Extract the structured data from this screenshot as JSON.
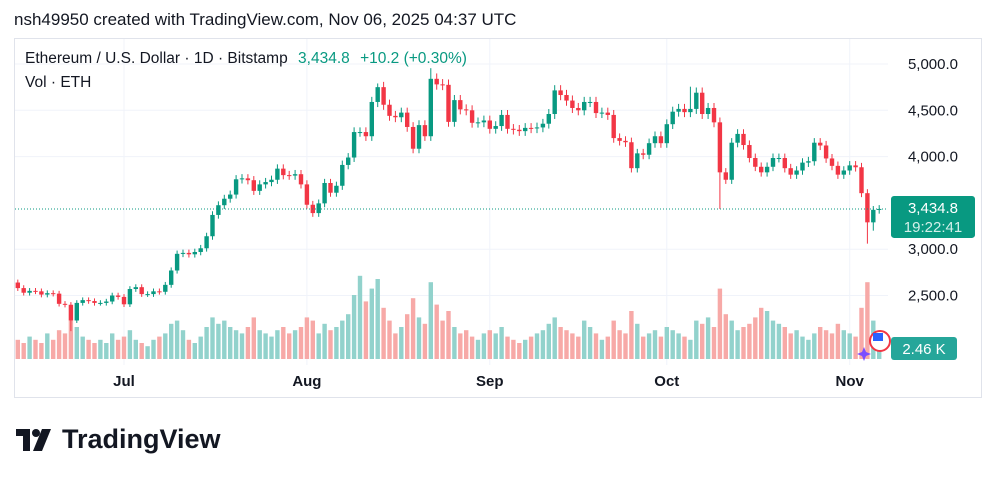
{
  "header": "nsh49950 created with TradingView.com, Nov 06, 2025 04:37 UTC",
  "legend": {
    "symbol": "Ethereum / U.S. Dollar · 1D · Bitstamp",
    "last": "3,434.8",
    "change": "+10.2 (+0.30%)",
    "volume_label": "Vol · ETH"
  },
  "price_tag": {
    "price": "3,434.8",
    "countdown": "19:22:41"
  },
  "volume_tag": "2.46 K",
  "logo_text": "TradingView",
  "colors": {
    "up": "#089981",
    "down": "#f23645",
    "vol_up": "#92d2cc",
    "vol_down": "#f7a9a7",
    "tag": "#089981"
  },
  "chart_data": {
    "type": "candlestick",
    "start_date": "2025-06-13",
    "y_ticks": [
      "5,000.0",
      "4,500.0",
      "4,000.0",
      "3,000.0",
      "2,500.0"
    ],
    "y_tick_values": [
      5000,
      4500,
      4000,
      3000,
      2500
    ],
    "ylim": [
      2100,
      5150
    ],
    "x_ticks": [
      {
        "label": "Jul",
        "date": "2025-07-01"
      },
      {
        "label": "Aug",
        "date": "2025-08-01"
      },
      {
        "label": "Sep",
        "date": "2025-09-01"
      },
      {
        "label": "Oct",
        "date": "2025-10-01"
      },
      {
        "label": "Nov",
        "date": "2025-11-01"
      }
    ],
    "first_open": 2640,
    "close": [
      2580,
      2530,
      2550,
      2545,
      2510,
      2525,
      2520,
      2410,
      2400,
      2230,
      2420,
      2450,
      2440,
      2420,
      2420,
      2435,
      2500,
      2485,
      2405,
      2570,
      2590,
      2515,
      2515,
      2545,
      2540,
      2615,
      2770,
      2950,
      2960,
      2945,
      2970,
      3010,
      3140,
      3370,
      3475,
      3545,
      3590,
      3755,
      3765,
      3745,
      3630,
      3700,
      3725,
      3750,
      3870,
      3800,
      3795,
      3810,
      3700,
      3480,
      3390,
      3495,
      3715,
      3610,
      3685,
      3910,
      3990,
      4265,
      4265,
      4220,
      4590,
      4750,
      4560,
      4440,
      4425,
      4475,
      4320,
      4085,
      4340,
      4220,
      4840,
      4780,
      4775,
      4375,
      4610,
      4510,
      4500,
      4365,
      4370,
      4390,
      4300,
      4330,
      4450,
      4300,
      4290,
      4275,
      4310,
      4305,
      4315,
      4355,
      4460,
      4715,
      4665,
      4605,
      4525,
      4500,
      4590,
      4590,
      4470,
      4475,
      4450,
      4200,
      4170,
      4155,
      3875,
      4035,
      4020,
      4145,
      4220,
      4145,
      4350,
      4485,
      4515,
      4480,
      4515,
      4690,
      4460,
      4525,
      4370,
      3830,
      3750,
      4150,
      4245,
      4125,
      3985,
      3890,
      3830,
      3890,
      3985,
      3985,
      3875,
      3805,
      3850,
      3935,
      3950,
      4150,
      4120,
      3980,
      3900,
      3805,
      3850,
      3905,
      3885,
      3605,
      3290,
      3425,
      3434.8
    ],
    "notable_lows": {
      "9": 2115,
      "119": 3435,
      "144": 3060,
      "145": 3200
    },
    "notable_highs": {
      "70": 4955,
      "114": 4755,
      "61": 4790
    },
    "volume_k": [
      6,
      5,
      7,
      6,
      5,
      8,
      6,
      9,
      8,
      12,
      10,
      7,
      6,
      5,
      6,
      5,
      8,
      6,
      7,
      9,
      6,
      5,
      4,
      6,
      7,
      8,
      11,
      12,
      9,
      6,
      5,
      7,
      10,
      13,
      11,
      12,
      10,
      9,
      8,
      10,
      13,
      9,
      8,
      7,
      9,
      10,
      8,
      9,
      10,
      13,
      12,
      8,
      11,
      9,
      10,
      12,
      14,
      20,
      26,
      18,
      22,
      25,
      16,
      12,
      8,
      10,
      14,
      19,
      13,
      11,
      24,
      17,
      12,
      15,
      10,
      8,
      9,
      7,
      6,
      8,
      9,
      8,
      10,
      7,
      6,
      5,
      6,
      7,
      8,
      9,
      11,
      13,
      10,
      9,
      8,
      7,
      12,
      10,
      8,
      6,
      7,
      12,
      9,
      8,
      15,
      11,
      7,
      8,
      9,
      7,
      10,
      9,
      8,
      7,
      6,
      12,
      11,
      13,
      10,
      22,
      14,
      12,
      9,
      10,
      11,
      13,
      16,
      15,
      12,
      11,
      10,
      8,
      9,
      7,
      6,
      8,
      10,
      9,
      8,
      11,
      9,
      8,
      7,
      16,
      24,
      12,
      2.46
    ]
  }
}
